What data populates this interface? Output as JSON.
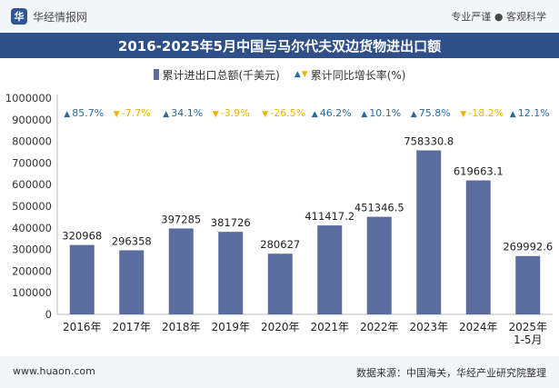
{
  "header": {
    "brand_name": "华经情报网",
    "logo_text": "华",
    "tagline": "专业严谨 ● 客观科学"
  },
  "title": "2016-2025年5月中国与马尔代夫双边货物进出口额",
  "legend": {
    "series1": "累计进出口总额(千美元)",
    "series2": "累计同比增长率(%)"
  },
  "footer": {
    "website": "www.huaon.com",
    "source": "数据来源：中国海关，华经产业研究院整理"
  },
  "colors": {
    "bar": "#5b6d9e",
    "up": "#2a6aa0",
    "down": "#f0b400",
    "title_bg": "#2f4f89"
  },
  "chart_data": {
    "type": "bar",
    "title": "2016-2025年5月中国与马尔代夫双边货物进出口额",
    "categories": [
      "2016年",
      "2017年",
      "2018年",
      "2019年",
      "2020年",
      "2021年",
      "2022年",
      "2023年",
      "2024年",
      "2025年\n1-5月"
    ],
    "series": [
      {
        "name": "累计进出口总额(千美元)",
        "values": [
          320968,
          296358,
          397285,
          381726,
          280627,
          411417.2,
          451346.5,
          758330.8,
          619663.1,
          269992.6
        ],
        "labels": [
          "320968",
          "296358",
          "397285",
          "381726",
          "280627",
          "411417.2",
          "451346.5",
          "758330.8",
          "619663.1",
          "269992.6"
        ]
      },
      {
        "name": "累计同比增长率(%)",
        "values": [
          85.7,
          -7.7,
          34.1,
          -3.9,
          -26.5,
          46.2,
          10.1,
          75.8,
          -18.2,
          12.1
        ],
        "labels": [
          "85.7%",
          "-7.7%",
          "34.1%",
          "-3.9%",
          "-26.5%",
          "46.2%",
          "10.1%",
          "75.8%",
          "-18.2%",
          "12.1%"
        ]
      }
    ],
    "ylim": [
      0,
      1000000
    ],
    "yticks": [
      0,
      100000,
      200000,
      300000,
      400000,
      500000,
      600000,
      700000,
      800000,
      900000,
      1000000
    ],
    "grid": false,
    "legend_position": "top-center"
  }
}
